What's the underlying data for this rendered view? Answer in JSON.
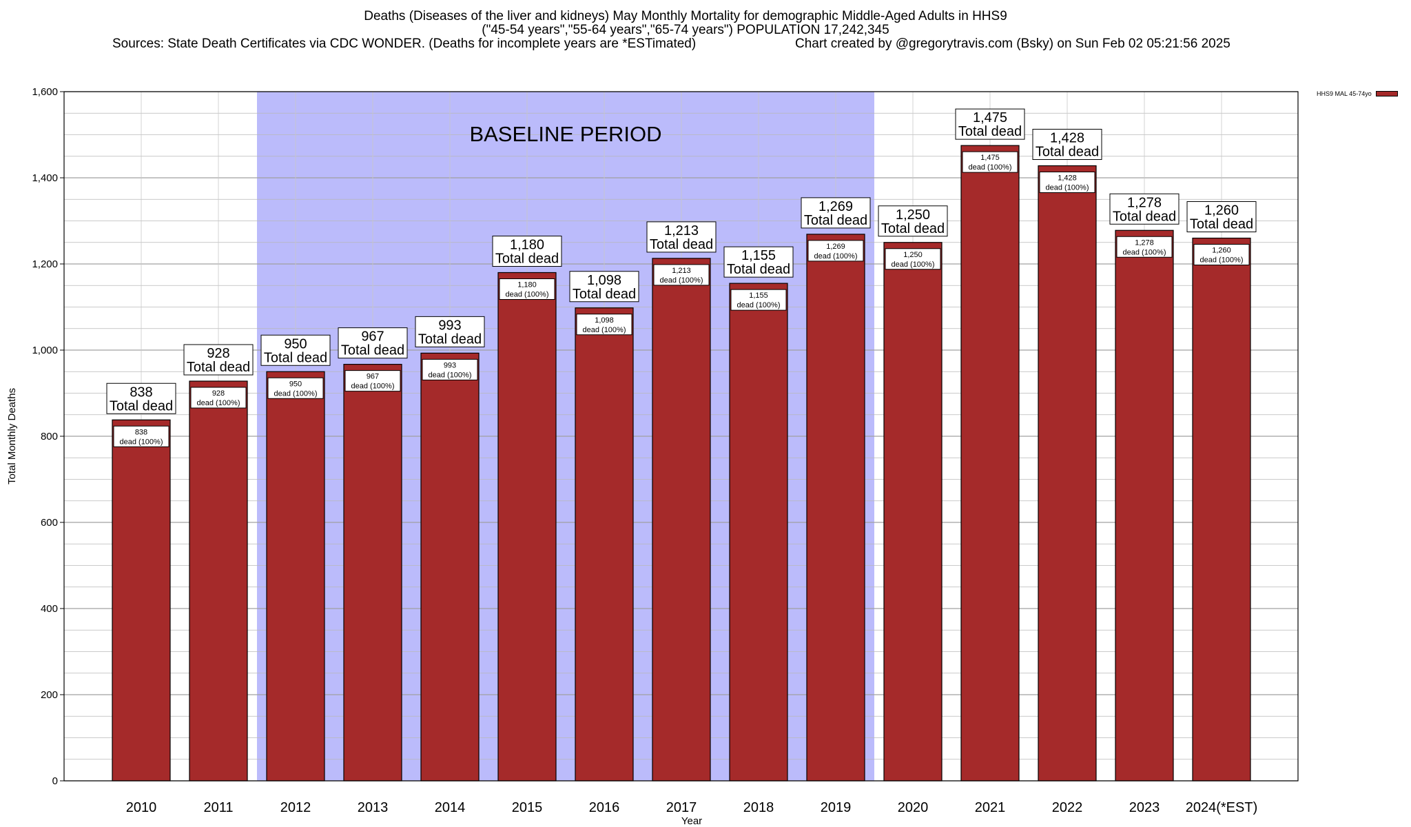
{
  "title": {
    "line1": "Deaths (Diseases of the liver and kidneys) May Monthly Mortality for demographic Middle-Aged Adults in HHS9",
    "line2": "(\"45-54 years\",\"55-64 years\",\"65-74 years\") POPULATION 17,242,345",
    "sources": "Sources: State Death Certificates via CDC WONDER. (Deaths for incomplete years are *ESTimated)",
    "credit": "Chart created by @gregorytravis.com (Bsky) on Sun Feb 02 05:21:56 2025"
  },
  "legend": {
    "label": "HHS9 MAL 45-74yo"
  },
  "colors": {
    "bar": "#a52a2a",
    "baseline": "#bbbbfb",
    "grid": "#b8b8b8"
  },
  "chart_data": {
    "type": "bar",
    "xlabel": "Year",
    "ylabel": "Total Monthly Deaths",
    "ylim": [
      0,
      1600
    ],
    "yticks": [
      0,
      200,
      400,
      600,
      800,
      1000,
      1200,
      1400,
      1600
    ],
    "ytick_labels": [
      "0",
      "200",
      "400",
      "600",
      "800",
      "1,000",
      "1,200",
      "1,400",
      "1,600"
    ],
    "grid": true,
    "legend_position": "top-right",
    "categories": [
      "2010",
      "2011",
      "2012",
      "2013",
      "2014",
      "2015",
      "2016",
      "2017",
      "2018",
      "2019",
      "2020",
      "2021",
      "2022",
      "2023",
      "2024(*EST)"
    ],
    "series": [
      {
        "name": "HHS9 MAL 45-74yo",
        "values": [
          838,
          928,
          950,
          967,
          993,
          1180,
          1098,
          1213,
          1155,
          1269,
          1250,
          1475,
          1428,
          1278,
          1260
        ]
      }
    ],
    "value_labels": [
      "838",
      "928",
      "950",
      "967",
      "993",
      "1,180",
      "1,098",
      "1,213",
      "1,155",
      "1,269",
      "1,250",
      "1,475",
      "1,428",
      "1,278",
      "1,260"
    ],
    "top_label_suffix": "Total dead",
    "inner_label_suffix": "dead (100%)",
    "annotations": [
      {
        "text": "BASELINE PERIOD",
        "x_start": "2012",
        "x_end": "2019"
      }
    ]
  }
}
